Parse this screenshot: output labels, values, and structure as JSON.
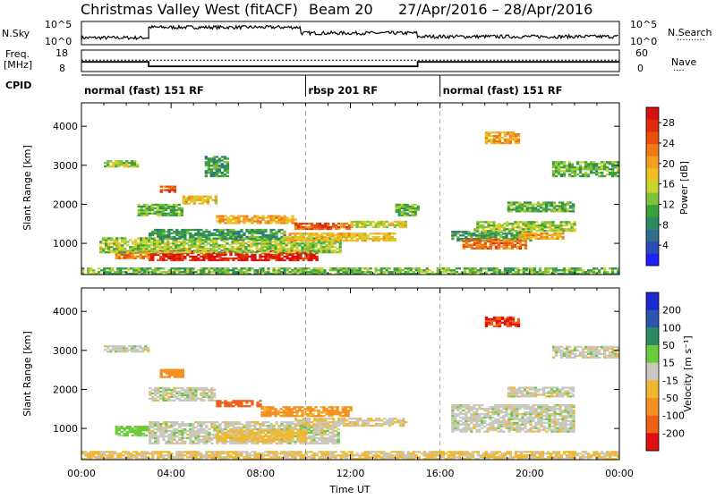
{
  "header": {
    "title": "Christmas Valley West (fitACF)",
    "beam": "Beam 20",
    "date_range": "27/Apr/2016 – 28/Apr/2016"
  },
  "nsky_panel": {
    "left_label": "N.Sky",
    "left_ticks": [
      "10^5",
      "10^0"
    ],
    "right_ticks": [
      "10^5",
      "10^0"
    ],
    "right_label": "N.Search",
    "right_legend": "··········"
  },
  "freq_panel": {
    "left_label_line1": "Freq.",
    "left_label_line2": "[MHz]",
    "left_ticks": [
      "18",
      "8"
    ],
    "right_ticks": [
      "60",
      "0"
    ],
    "right_label": "Nave",
    "right_legend": "····"
  },
  "cpid_panel": {
    "label": "CPID",
    "segments": [
      {
        "text": "normal (fast) 151 RF",
        "start_hour": 0
      },
      {
        "text": "rbsp 201 RF",
        "start_hour": 10
      },
      {
        "text": "normal (fast) 151 RF",
        "start_hour": 16
      }
    ]
  },
  "chart_data": [
    {
      "type": "heatmap",
      "name": "power",
      "ylabel": "Slant Range [km]",
      "y_ticks": [
        "1000",
        "2000",
        "3000",
        "4000"
      ],
      "y_tick_values": [
        1000,
        2000,
        3000,
        4000
      ],
      "ylim": [
        200,
        4600
      ],
      "xlim": [
        0,
        24
      ],
      "colorbar": {
        "label": "Power [dB]",
        "ticks": [
          "4",
          "8",
          "12",
          "16",
          "20",
          "24",
          "28"
        ],
        "tick_values": [
          4,
          8,
          12,
          16,
          20,
          24,
          28
        ],
        "range": [
          0,
          31
        ],
        "colors": [
          "#2020ff",
          "#2a4db8",
          "#2f6f8c",
          "#2e8a62",
          "#3aa03a",
          "#7fc23a",
          "#c8d530",
          "#f0c020",
          "#f4a020",
          "#f07a18",
          "#e85010",
          "#e02a0a",
          "#d81010"
        ]
      },
      "regions": [
        {
          "t": [
            3.0,
            10.5
          ],
          "r": [
            550,
            800
          ],
          "v": 29
        },
        {
          "t": [
            1.5,
            3.0
          ],
          "r": [
            600,
            800
          ],
          "v": 22
        },
        {
          "t": [
            0.8,
            11.5
          ],
          "r": [
            750,
            1150
          ],
          "v": 14
        },
        {
          "t": [
            3.0,
            9.0
          ],
          "r": [
            1100,
            1350
          ],
          "v": 10
        },
        {
          "t": [
            9.0,
            14.0
          ],
          "r": [
            1050,
            1250
          ],
          "v": 18
        },
        {
          "t": [
            6.0,
            9.5
          ],
          "r": [
            1500,
            1700
          ],
          "v": 20
        },
        {
          "t": [
            9.5,
            12.0
          ],
          "r": [
            1350,
            1500
          ],
          "v": 24
        },
        {
          "t": [
            12.0,
            14.5
          ],
          "r": [
            1400,
            1550
          ],
          "v": 16
        },
        {
          "t": [
            2.5,
            4.5
          ],
          "r": [
            1700,
            2000
          ],
          "v": 12
        },
        {
          "t": [
            4.5,
            6.0
          ],
          "r": [
            2000,
            2200
          ],
          "v": 18
        },
        {
          "t": [
            3.5,
            4.2
          ],
          "r": [
            2300,
            2450
          ],
          "v": 24
        },
        {
          "t": [
            1.0,
            2.5
          ],
          "r": [
            2950,
            3100
          ],
          "v": 14
        },
        {
          "t": [
            5.5,
            6.5
          ],
          "r": [
            2700,
            3200
          ],
          "v": 10
        },
        {
          "t": [
            14.0,
            15.0
          ],
          "r": [
            1700,
            2000
          ],
          "v": 12
        },
        {
          "t": [
            16.5,
            20.0
          ],
          "r": [
            1050,
            1300
          ],
          "v": 10
        },
        {
          "t": [
            17.0,
            19.8
          ],
          "r": [
            850,
            1100
          ],
          "v": 23
        },
        {
          "t": [
            17.5,
            22.0
          ],
          "r": [
            1300,
            1550
          ],
          "v": 14
        },
        {
          "t": [
            19.5,
            21.5
          ],
          "r": [
            1100,
            1250
          ],
          "v": 20
        },
        {
          "t": [
            19.0,
            22.0
          ],
          "r": [
            1800,
            2050
          ],
          "v": 12
        },
        {
          "t": [
            18.0,
            19.5
          ],
          "r": [
            3550,
            3850
          ],
          "v": 20
        },
        {
          "t": [
            21.0,
            24.0
          ],
          "r": [
            2700,
            3100
          ],
          "v": 12
        },
        {
          "t": [
            0.0,
            24.0
          ],
          "r": [
            200,
            380
          ],
          "v": 12
        }
      ]
    },
    {
      "type": "heatmap",
      "name": "velocity",
      "xlabel": "Time UT",
      "ylabel": "Slant Range [km]",
      "y_ticks": [
        "1000",
        "2000",
        "3000",
        "4000"
      ],
      "y_tick_values": [
        1000,
        2000,
        3000,
        4000
      ],
      "ylim": [
        200,
        4600
      ],
      "xlim": [
        0,
        24
      ],
      "x_ticks": [
        "00:00",
        "04:00",
        "08:00",
        "12:00",
        "16:00",
        "20:00",
        "00:00"
      ],
      "x_tick_values": [
        0,
        4,
        8,
        12,
        16,
        20,
        24
      ],
      "colorbar": {
        "label": "Velocity [m s⁻¹]",
        "ticks": [
          "200",
          "100",
          "50",
          "15",
          "-15",
          "-50",
          "-100",
          "-200"
        ],
        "tick_values": [
          200,
          100,
          50,
          15,
          -15,
          -50,
          -100,
          -200
        ],
        "colors": [
          "#e01010",
          "#f06018",
          "#f49020",
          "#f0b830",
          "#c8c8c0",
          "#6ccb3a",
          "#2e8a62",
          "#2a55b0",
          "#1a2ad0"
        ]
      },
      "regions": [
        {
          "t": [
            1.5,
            3.0
          ],
          "r": [
            800,
            1050
          ],
          "v": 30
        },
        {
          "t": [
            3.0,
            11.5
          ],
          "r": [
            600,
            1150
          ],
          "v": 0
        },
        {
          "t": [
            6.0,
            10.0
          ],
          "r": [
            650,
            950
          ],
          "v": -30
        },
        {
          "t": [
            9.5,
            14.5
          ],
          "r": [
            1050,
            1250
          ],
          "v": -10
        },
        {
          "t": [
            8.0,
            12.0
          ],
          "r": [
            1300,
            1550
          ],
          "v": -60
        },
        {
          "t": [
            6.0,
            8.0
          ],
          "r": [
            1550,
            1700
          ],
          "v": -120
        },
        {
          "t": [
            3.0,
            6.0
          ],
          "r": [
            1700,
            2050
          ],
          "v": 0
        },
        {
          "t": [
            3.5,
            4.5
          ],
          "r": [
            2300,
            2500
          ],
          "v": -80
        },
        {
          "t": [
            1.0,
            3.0
          ],
          "r": [
            2950,
            3100
          ],
          "v": 0
        },
        {
          "t": [
            16.5,
            22.0
          ],
          "r": [
            900,
            1600
          ],
          "v": 0
        },
        {
          "t": [
            19.0,
            22.0
          ],
          "r": [
            1800,
            2050
          ],
          "v": 0
        },
        {
          "t": [
            18.0,
            19.5
          ],
          "r": [
            3600,
            3850
          ],
          "v": -200
        },
        {
          "t": [
            21.0,
            24.0
          ],
          "r": [
            2800,
            3100
          ],
          "v": 0
        },
        {
          "t": [
            0.0,
            24.0
          ],
          "r": [
            200,
            400
          ],
          "v": -20
        }
      ]
    }
  ],
  "time_series": {
    "nsky": [
      {
        "t": [
          0,
          3
        ],
        "v": 0.3
      },
      {
        "t": [
          3,
          9.8
        ],
        "v": 0.75
      },
      {
        "t": [
          9.8,
          15
        ],
        "v": 0.5
      },
      {
        "t": [
          15,
          24
        ],
        "v": 0.35
      }
    ],
    "freq_mhz": [
      {
        "t": [
          0,
          3
        ],
        "v": 12.5
      },
      {
        "t": [
          3,
          15
        ],
        "v": 10.4
      },
      {
        "t": [
          15,
          24
        ],
        "v": 12.5
      }
    ],
    "nave": 32
  }
}
